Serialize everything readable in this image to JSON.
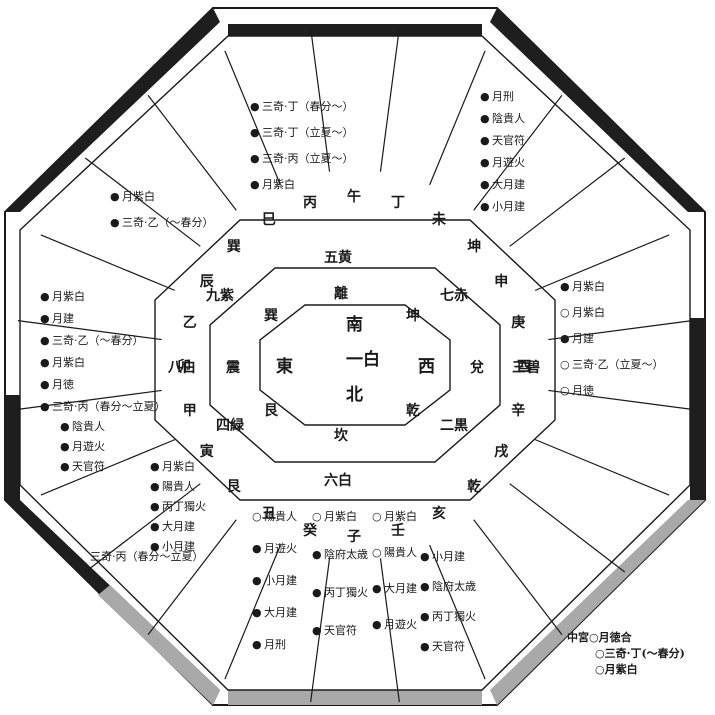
{
  "center": {
    "top": "南",
    "right": "西",
    "bottom": "北",
    "left": "東",
    "label": "一白"
  },
  "palaces": {
    "south": {
      "star": "五黄",
      "trigram": "離"
    },
    "southwest": {
      "star": "七赤",
      "trigram": "坤"
    },
    "west": {
      "star": "三碧",
      "trigram": "兌"
    },
    "northwest": {
      "star": "二黒",
      "trigram": "乾"
    },
    "north": {
      "star": "六白",
      "trigram": "坎"
    },
    "northeast": {
      "star": "四緑",
      "trigram": "艮"
    },
    "east": {
      "star": "八白",
      "trigram": "震"
    },
    "southeast": {
      "star": "九紫",
      "trigram": "巽"
    }
  },
  "mountains": [
    "午",
    "丁",
    "未",
    "坤",
    "申",
    "庚",
    "酉",
    "辛",
    "戌",
    "乾",
    "亥",
    "壬",
    "子",
    "癸",
    "丑",
    "艮",
    "寅",
    "甲",
    "卯",
    "乙",
    "辰",
    "巽",
    "巳",
    "丙"
  ],
  "notes": {
    "north_col1": [
      "陽貴人",
      "月遊火",
      "小月建",
      "大月建",
      "月刑"
    ],
    "north_col2": [
      "月紫白",
      "陰府太歳",
      "丙丁獨火",
      "天官符"
    ],
    "north_col3": [
      "月紫白",
      "陽貴人",
      "大月建",
      "月遊火"
    ],
    "north_col4": [
      "小月建",
      "陰府太歳",
      "丙丁獨火",
      "天官符"
    ],
    "north_marks1": [
      "○",
      "●",
      "●",
      "●",
      "●"
    ],
    "north_marks2": [
      "○",
      "●",
      "●",
      "●"
    ],
    "north_marks3": [
      "○",
      "○",
      "●",
      "●"
    ],
    "north_marks4": [
      "●",
      "●",
      "●",
      "●"
    ],
    "ne_col1": [
      "月紫白",
      "陽貴人",
      "丙丁獨火",
      "大月建",
      "小月建"
    ],
    "ne_col2": [
      "陰貴人",
      "月遊火",
      "天官符"
    ],
    "ne_extra": "三奇·丙（春分〜立夏）",
    "east_notes": [
      "月紫白",
      "月建",
      "三奇·乙（〜春分）",
      "月紫白",
      "月徳",
      "三奇·丙（春分〜立夏）"
    ],
    "west_notes": [
      "月紫白",
      "月紫白",
      "月建",
      "三奇·乙（立夏〜）",
      "月徳"
    ],
    "south_notes": [
      "三奇·丁（春分〜）",
      "三奇·丁（立夏〜）",
      "三奇·丙（立夏〜）",
      "月紫白"
    ],
    "se_notes": [
      "月紫白",
      "三奇·乙（〜春分）"
    ],
    "sw_notes": [
      "月刑",
      "陰貴人",
      "天官符",
      "月遊火",
      "大月建",
      "小月建"
    ]
  },
  "legend": {
    "title": "中宮",
    "items": [
      {
        "mark": "○",
        "text": "月徳合"
      },
      {
        "mark": "○",
        "text": "三奇·丁(〜春分)"
      },
      {
        "mark": "○",
        "text": "月紫白"
      }
    ]
  },
  "colors": {
    "ink": "#1a1a1a",
    "band": "#1e1e1e",
    "grey": "#a9a9a9"
  }
}
